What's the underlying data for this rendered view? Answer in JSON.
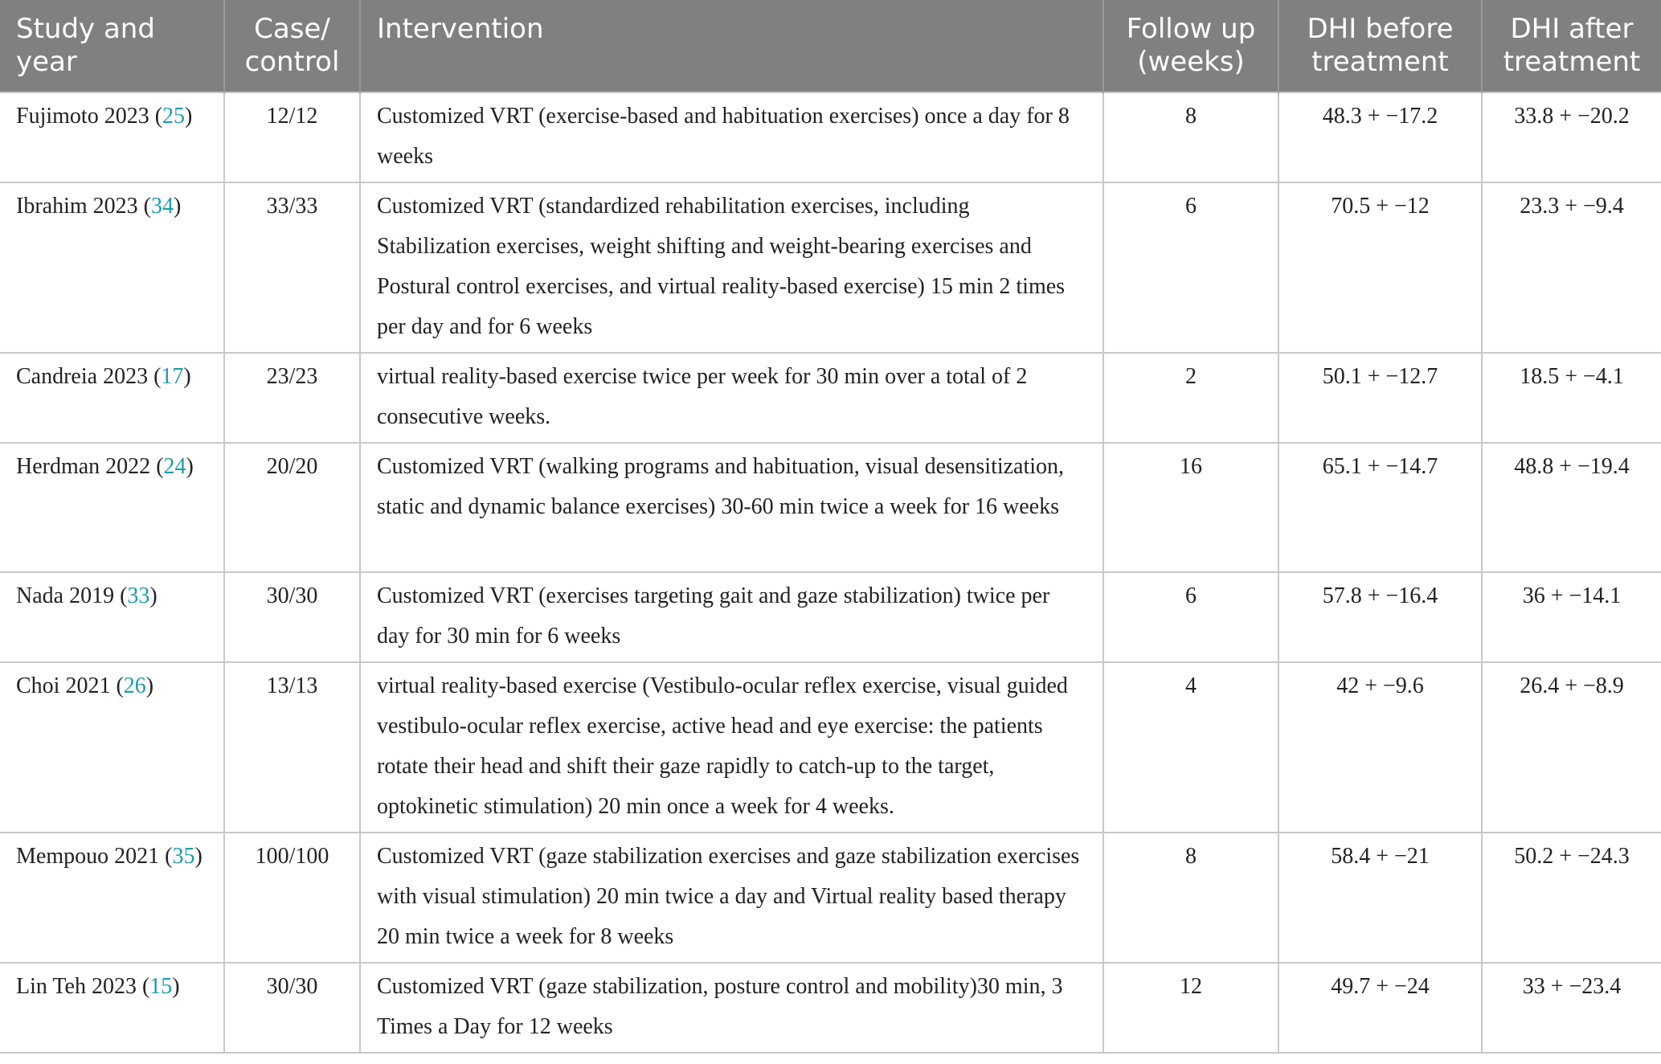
{
  "headers": [
    "Study and year",
    "Case/ control",
    "Intervention",
    "Follow up (weeks)",
    "DHI before treatment",
    "DHI after treatment"
  ],
  "accent_color": "#1a9cb0",
  "rows": [
    {
      "study": "Fujimoto 2023",
      "ref": "25",
      "case_control": "12/12",
      "intervention": "Customized VRT (exercise-based and habituation exercises) once a day for 8 weeks",
      "follow_up": "8",
      "dhi_before": "48.3 + −17.2",
      "dhi_after": "33.8 + −20.2"
    },
    {
      "study": "Ibrahim 2023",
      "ref": "34",
      "case_control": "33/33",
      "intervention": "Customized VRT (standardized rehabilitation exercises, including Stabilization exercises, weight shifting and weight-bearing exercises and Postural control exercises, and virtual reality-based exercise) 15 min 2 times per day and for 6 weeks",
      "follow_up": "6",
      "dhi_before": "70.5 + −12",
      "dhi_after": "23.3 + −9.4"
    },
    {
      "study": "Candreia 2023",
      "ref": "17",
      "case_control": "23/23",
      "intervention": "virtual reality-based exercise twice per week for 30 min over a total of 2 consecutive weeks.",
      "follow_up": "2",
      "dhi_before": "50.1 + −12.7",
      "dhi_after": "18.5 + −4.1"
    },
    {
      "study": "Herdman 2022",
      "ref": "24",
      "case_control": "20/20",
      "intervention": "Customized VRT (walking programs and habituation, visual desensitization, static and dynamic balance exercises) 30-60 min twice a week for 16 weeks",
      "follow_up": "16",
      "dhi_before": "65.1 + −14.7",
      "dhi_after": "48.8 + −19.4"
    },
    {
      "study": "Nada 2019",
      "ref": "33",
      "case_control": "30/30",
      "intervention": "Customized VRT (exercises targeting gait and gaze stabilization) twice per day for 30 min for 6 weeks",
      "follow_up": "6",
      "dhi_before": "57.8 + −16.4",
      "dhi_after": "36 + −14.1"
    },
    {
      "study": "Choi 2021",
      "ref": "26",
      "case_control": "13/13",
      "intervention": "virtual reality-based exercise (Vestibulo-ocular reflex exercise, visual guided vestibulo-ocular reflex exercise, active head and eye exercise: the patients rotate their head and shift their gaze rapidly to catch-up to the target, optokinetic stimulation) 20 min once a week for 4 weeks.",
      "follow_up": "4",
      "dhi_before": "42 + −9.6",
      "dhi_after": "26.4 + −8.9"
    },
    {
      "study": "Mempouo 2021",
      "ref": "35",
      "case_control": "100/100",
      "intervention": "Customized VRT (gaze stabilization exercises and gaze stabilization exercises with visual stimulation) 20 min twice a day and Virtual reality based therapy 20 min twice a week for 8 weeks",
      "follow_up": "8",
      "dhi_before": "58.4 + −21",
      "dhi_after": "50.2 + −24.3"
    },
    {
      "study": "Lin Teh 2023",
      "ref": "15",
      "case_control": "30/30",
      "intervention": "Customized VRT (gaze stabilization, posture control and mobility)30 min, 3 Times a Day for 12 weeks",
      "follow_up": "12",
      "dhi_before": "49.7 + −24",
      "dhi_after": "33 + −23.4"
    }
  ]
}
